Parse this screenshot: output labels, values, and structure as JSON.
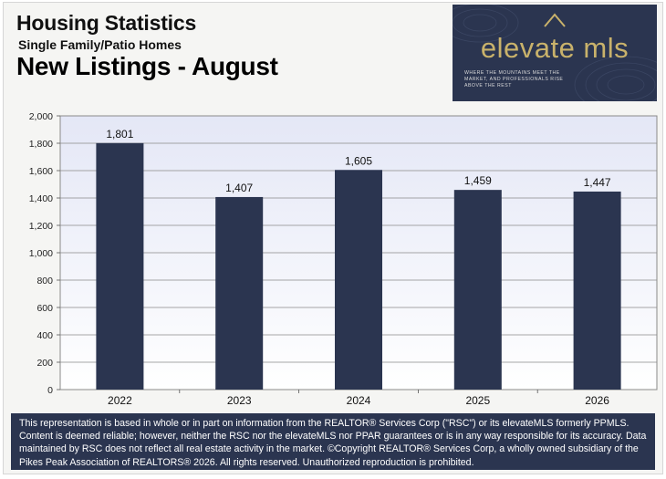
{
  "header": {
    "title": "Housing Statistics",
    "subtitle": "Single Family/Patio Homes",
    "chart_title": "New Listings - August"
  },
  "logo": {
    "brand": "elevate mls",
    "tagline": "WHERE THE MOUNTAINS MEET THE MARKET, AND PROFESSIONALS RISE ABOVE THE REST"
  },
  "chart_data": {
    "type": "bar",
    "categories": [
      "2022",
      "2023",
      "2024",
      "2025",
      "2026"
    ],
    "values": [
      1801,
      1407,
      1605,
      1459,
      1447
    ],
    "data_labels": [
      "1,801",
      "1,407",
      "1,605",
      "1,459",
      "1,447"
    ],
    "ylim": [
      0,
      2000
    ],
    "yticks": [
      0,
      200,
      400,
      600,
      800,
      1000,
      1200,
      1400,
      1600,
      1800,
      2000
    ],
    "ytick_labels": [
      "0",
      "200",
      "400",
      "600",
      "800",
      "1,000",
      "1,200",
      "1,400",
      "1,600",
      "1,800",
      "2,000"
    ],
    "grid": true,
    "bar_color": "#2b3550"
  },
  "footer": {
    "disclaimer": "This representation is based in whole or in part on information from the REALTOR® Services Corp (\"RSC\") or its elevateMLS formerly PPMLS. Content is deemed reliable; however, neither the RSC nor the elevateMLS nor PPAR guarantees or is in any way responsible for its accuracy. Data maintained by RSC does not reflect all real estate activity in the market. ©Copyright REALTOR® Services Corp, a wholly owned subsidiary of the Pikes Peak Association of REALTORS® 2026.  All rights reserved. Unauthorized reproduction is prohibited."
  }
}
